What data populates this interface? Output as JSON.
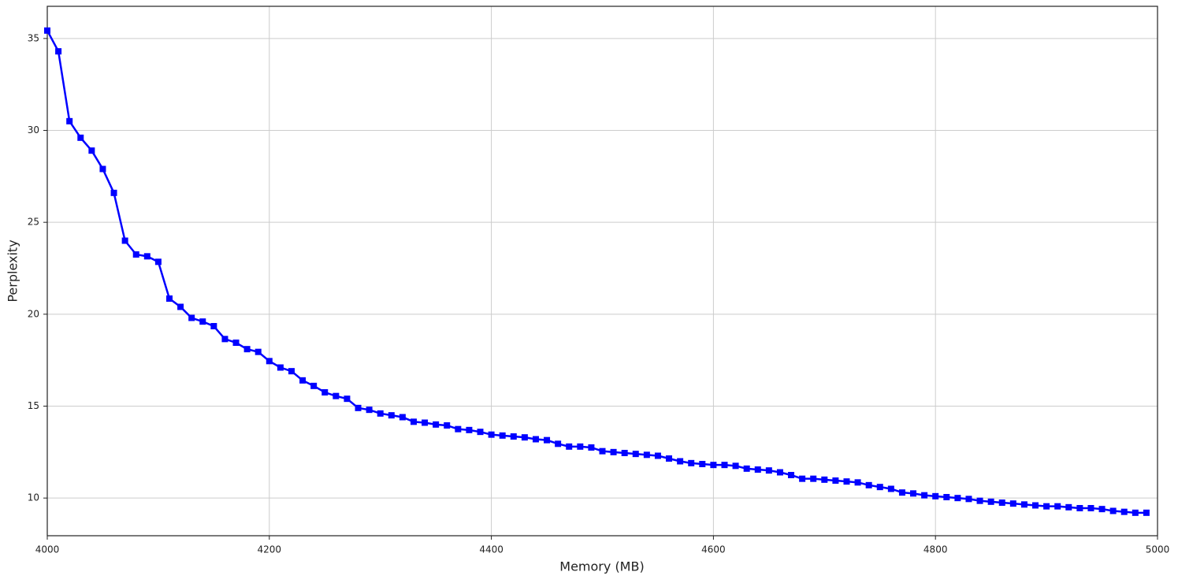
{
  "chart_data": {
    "type": "line",
    "xlabel": "Memory (MB)",
    "ylabel": "Perplexity",
    "x": [
      4000,
      4010,
      4020,
      4030,
      4040,
      4050,
      4060,
      4070,
      4080,
      4090,
      4100,
      4110,
      4120,
      4130,
      4140,
      4150,
      4160,
      4170,
      4180,
      4190,
      4200,
      4210,
      4220,
      4230,
      4240,
      4250,
      4260,
      4270,
      4280,
      4290,
      4300,
      4310,
      4320,
      4330,
      4340,
      4350,
      4360,
      4370,
      4380,
      4390,
      4400,
      4410,
      4420,
      4430,
      4440,
      4450,
      4460,
      4470,
      4480,
      4490,
      4500,
      4510,
      4520,
      4530,
      4540,
      4550,
      4560,
      4570,
      4580,
      4590,
      4600,
      4610,
      4620,
      4630,
      4640,
      4650,
      4660,
      4670,
      4680,
      4690,
      4700,
      4710,
      4720,
      4730,
      4740,
      4750,
      4760,
      4770,
      4780,
      4790,
      4800,
      4810,
      4820,
      4830,
      4840,
      4850,
      4860,
      4870,
      4880,
      4890,
      4900,
      4910,
      4920,
      4930,
      4940,
      4950,
      4960,
      4970,
      4980,
      4990
    ],
    "values": [
      35.43,
      34.3,
      30.5,
      29.6,
      28.9,
      27.9,
      26.6,
      24.0,
      23.25,
      23.15,
      22.85,
      20.85,
      20.4,
      19.8,
      19.6,
      19.35,
      18.65,
      18.45,
      18.1,
      17.95,
      17.45,
      17.1,
      16.9,
      16.4,
      16.1,
      15.75,
      15.55,
      15.4,
      14.9,
      14.8,
      14.6,
      14.5,
      14.4,
      14.15,
      14.1,
      14.0,
      13.95,
      13.75,
      13.7,
      13.6,
      13.45,
      13.4,
      13.35,
      13.3,
      13.2,
      13.15,
      12.95,
      12.8,
      12.8,
      12.75,
      12.55,
      12.5,
      12.45,
      12.4,
      12.35,
      12.3,
      12.15,
      12.0,
      11.9,
      11.85,
      11.8,
      11.8,
      11.75,
      11.6,
      11.55,
      11.5,
      11.4,
      11.25,
      11.05,
      11.05,
      11.0,
      10.95,
      10.9,
      10.85,
      10.7,
      10.6,
      10.5,
      10.3,
      10.25,
      10.15,
      10.1,
      10.05,
      10.0,
      9.95,
      9.85,
      9.8,
      9.75,
      9.7,
      9.65,
      9.6,
      9.55,
      9.55,
      9.5,
      9.45,
      9.45,
      9.4,
      9.3,
      9.25,
      9.2,
      9.2
    ],
    "color": "#0000ff",
    "marker": "square",
    "xlim": [
      4000,
      5000
    ],
    "xticks": [
      4000,
      4200,
      4400,
      4600,
      4800,
      5000
    ],
    "ylim": [
      7.95,
      36.75
    ],
    "yticks": [
      10,
      15,
      20,
      25,
      30,
      35
    ],
    "grid": true
  }
}
